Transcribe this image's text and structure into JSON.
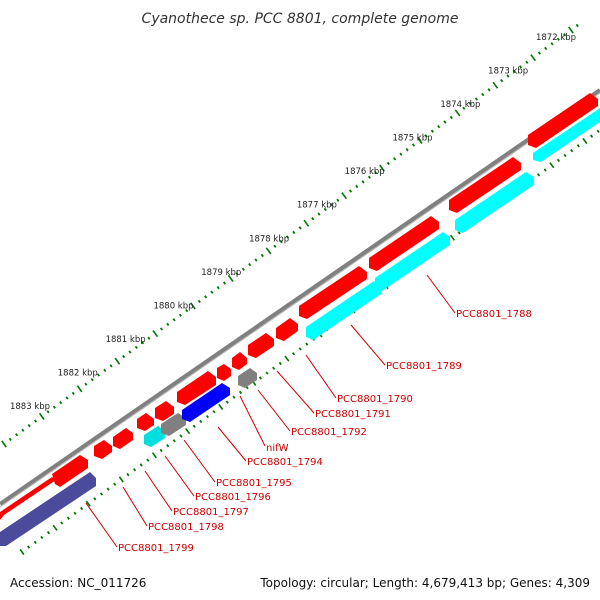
{
  "title": "Cyanothece sp. PCC 8801, complete genome",
  "accession": "Accession: NC_011726",
  "summary": "Topology: circular; Length: 4,679,413 bp; Genes: 4,309",
  "colors": {
    "backbone": "#808080",
    "cds": "#ff0000",
    "cds_other": "#00ffff",
    "rna": "#808080",
    "blue": "#0000ff",
    "navy": "#4b4b9b",
    "tick": "#007700",
    "label": "#cc0000"
  },
  "kbp_labels": [
    "1872 kbp",
    "1873 kbp",
    "1874 kbp",
    "1875 kbp",
    "1876 kbp",
    "1877 kbp",
    "1878 kbp",
    "1879 kbp",
    "1880 kbp",
    "1881 kbp",
    "1882 kbp",
    "1883 kbp"
  ],
  "gene_labels": [
    "PCC8801_1788",
    "PCC8801_1789",
    "PCC8801_1790",
    "PCC8801_1791",
    "PCC8801_1792",
    "nifW",
    "PCC8801_1794",
    "PCC8801_1795",
    "PCC8801_1796",
    "PCC8801_1797",
    "PCC8801_1798",
    "PCC8801_1799"
  ]
}
